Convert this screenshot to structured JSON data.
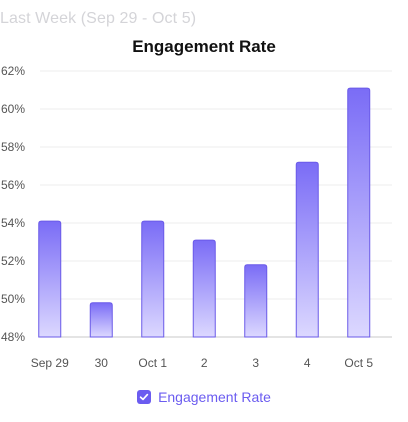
{
  "header": {
    "subtitle": "Last Week (Sep 29 - Oct 5)"
  },
  "colors": {
    "bar_top": "#7a6cf6",
    "bar_bottom": "#dcd8ff",
    "bar_outline": "#6a5ae8",
    "gridline": "#ececec",
    "axis_line": "#c8c8c8",
    "legend_accent": "#6b5cf0"
  },
  "legend": {
    "items": [
      {
        "label": "Engagement Rate",
        "checked": true,
        "icon": "checkbox-checked-icon"
      }
    ]
  },
  "chart_data": {
    "type": "bar",
    "title": "Engagement Rate",
    "xlabel": "",
    "ylabel": "",
    "categories": [
      "Sep 29",
      "30",
      "Oct 1",
      "2",
      "3",
      "4",
      "Oct 5"
    ],
    "series": [
      {
        "name": "Engagement Rate",
        "values": [
          54.1,
          49.8,
          54.1,
          53.1,
          51.8,
          57.2,
          61.1
        ]
      }
    ],
    "ylim": [
      48,
      62
    ],
    "yticks": [
      48,
      50,
      52,
      54,
      56,
      58,
      60,
      62
    ],
    "ytick_labels": [
      "48%",
      "50%",
      "52%",
      "54%",
      "56%",
      "58%",
      "60%",
      "62%"
    ],
    "grid": true,
    "legend_position": "bottom"
  }
}
